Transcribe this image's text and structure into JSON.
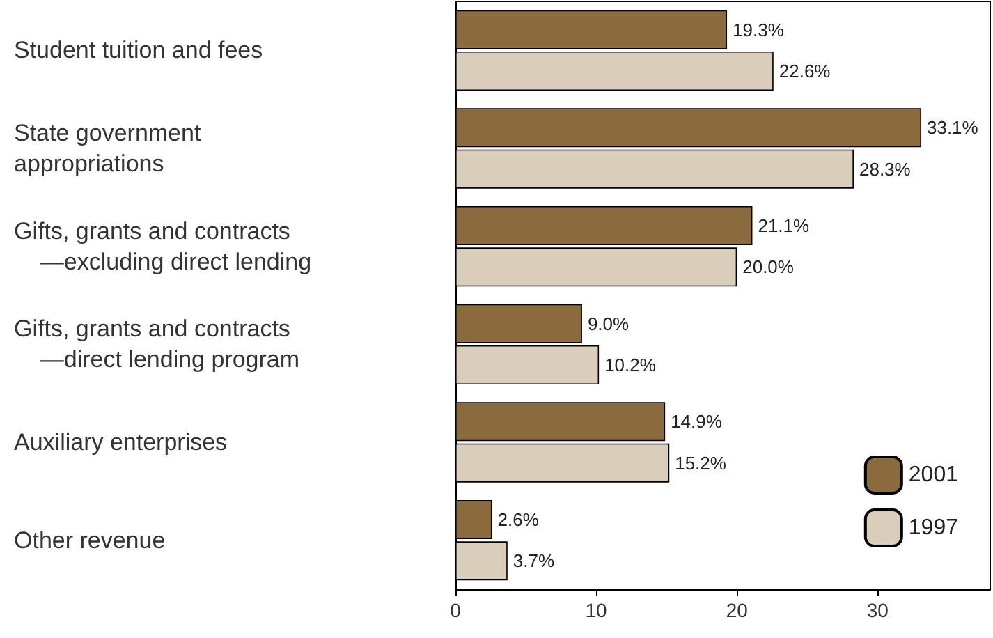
{
  "chart_data": {
    "type": "bar",
    "orientation": "horizontal",
    "categories": [
      "Student tuition and fees",
      "State government\nappropriations",
      "Gifts, grants and contracts\n    —excluding direct lending",
      "Gifts, grants and contracts\n    —direct lending program",
      "Auxiliary enterprises",
      "Other revenue"
    ],
    "series": [
      {
        "name": "2001",
        "color": "#8b6b3d",
        "values": [
          19.3,
          33.1,
          21.1,
          9.0,
          14.9,
          2.6
        ],
        "value_labels": [
          "19.3%",
          "33.1%",
          "21.1%",
          "9.0%",
          "14.9%",
          "2.6%"
        ]
      },
      {
        "name": "1997",
        "color": "#dacdbb",
        "values": [
          22.6,
          28.3,
          20.0,
          10.2,
          15.2,
          3.7
        ],
        "value_labels": [
          "22.6%",
          "28.3%",
          "20.0%",
          "10.2%",
          "15.2%",
          "3.7%"
        ]
      }
    ],
    "xlim": [
      0,
      38
    ],
    "xticks": [
      0,
      10,
      20,
      30
    ],
    "grid": false,
    "legend": "bottom right"
  }
}
